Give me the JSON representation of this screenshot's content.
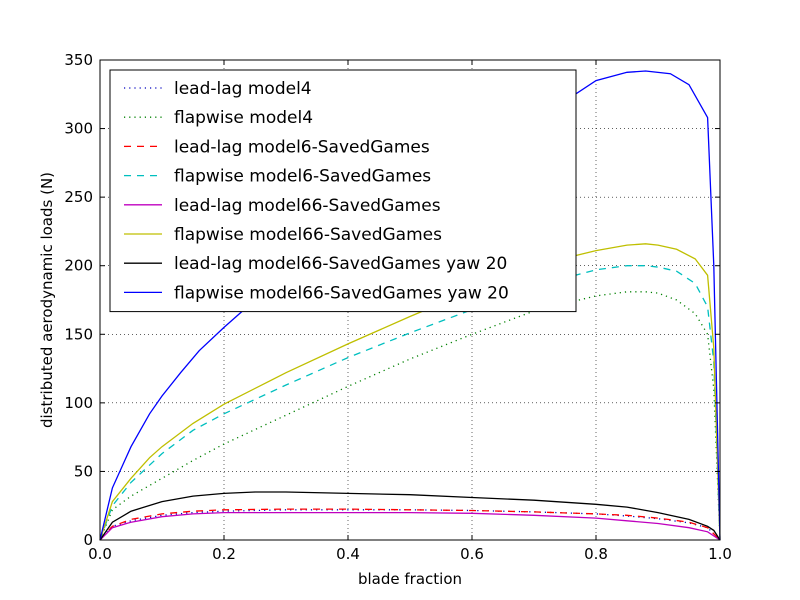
{
  "chart_data": {
    "type": "line",
    "xlabel": "blade fraction",
    "ylabel": "distributed aerodynamic loads (N)",
    "xlim": [
      0.0,
      1.0
    ],
    "ylim": [
      0,
      350
    ],
    "xticks": [
      "0.0",
      "0.2",
      "0.4",
      "0.6",
      "0.8",
      "1.0"
    ],
    "yticks": [
      "0",
      "50",
      "100",
      "150",
      "200",
      "250",
      "300",
      "350"
    ],
    "grid": true,
    "legend_position": "top-left",
    "series": [
      {
        "name": "lead-lag model4",
        "color": "#0000bf",
        "style": "dotted",
        "x": [
          0,
          0.02,
          0.05,
          0.1,
          0.15,
          0.2,
          0.3,
          0.4,
          0.5,
          0.6,
          0.7,
          0.8,
          0.85,
          0.9,
          0.95,
          0.98,
          1.0
        ],
        "y": [
          0,
          10,
          14,
          18,
          20,
          21,
          22,
          22,
          22,
          21.5,
          20.5,
          19,
          17.5,
          15.5,
          12.5,
          9,
          0
        ]
      },
      {
        "name": "flapwise model4",
        "color": "#008000",
        "style": "dotted",
        "x": [
          0,
          0.02,
          0.05,
          0.1,
          0.15,
          0.2,
          0.3,
          0.4,
          0.5,
          0.6,
          0.7,
          0.8,
          0.85,
          0.88,
          0.9,
          0.93,
          0.96,
          0.98,
          0.99,
          1.0
        ],
        "y": [
          0,
          22,
          32,
          45,
          58,
          70,
          91,
          112,
          132,
          150,
          167,
          178,
          181,
          181,
          180,
          175,
          165,
          150,
          110,
          0
        ]
      },
      {
        "name": "lead-lag model6-SavedGames",
        "color": "#ff0000",
        "style": "dashed",
        "x": [
          0,
          0.02,
          0.05,
          0.1,
          0.15,
          0.2,
          0.3,
          0.4,
          0.5,
          0.6,
          0.7,
          0.8,
          0.85,
          0.9,
          0.95,
          0.98,
          1.0
        ],
        "y": [
          0,
          10,
          15,
          19,
          21,
          22,
          22.5,
          22.5,
          22,
          21.5,
          20.5,
          19,
          18,
          16,
          13,
          9,
          0
        ]
      },
      {
        "name": "flapwise model6-SavedGames",
        "color": "#00bfbf",
        "style": "dashed",
        "x": [
          0,
          0.02,
          0.05,
          0.1,
          0.15,
          0.2,
          0.3,
          0.4,
          0.5,
          0.6,
          0.7,
          0.8,
          0.85,
          0.88,
          0.9,
          0.93,
          0.96,
          0.98,
          0.99,
          1.0
        ],
        "y": [
          0,
          25,
          42,
          63,
          80,
          92,
          113,
          133,
          151,
          168,
          185,
          197,
          200,
          200,
          199,
          196,
          187,
          170,
          130,
          0
        ]
      },
      {
        "name": "lead-lag model66-SavedGames",
        "color": "#bf00bf",
        "style": "solid",
        "x": [
          0,
          0.02,
          0.05,
          0.1,
          0.15,
          0.2,
          0.3,
          0.4,
          0.5,
          0.6,
          0.7,
          0.8,
          0.85,
          0.9,
          0.95,
          0.98,
          1.0
        ],
        "y": [
          0,
          9,
          13,
          17,
          19,
          20,
          20,
          20,
          20,
          19.5,
          18,
          16,
          14,
          12,
          9,
          6,
          0
        ]
      },
      {
        "name": "flapwise model66-SavedGames",
        "color": "#bfbf00",
        "style": "solid",
        "x": [
          0,
          0.02,
          0.05,
          0.08,
          0.1,
          0.15,
          0.2,
          0.3,
          0.4,
          0.5,
          0.6,
          0.7,
          0.8,
          0.85,
          0.88,
          0.9,
          0.93,
          0.96,
          0.98,
          0.99,
          1.0
        ],
        "y": [
          0,
          28,
          45,
          60,
          68,
          85,
          99,
          122,
          143,
          163,
          182,
          200,
          211,
          215,
          216,
          215,
          212,
          205,
          193,
          140,
          0
        ]
      },
      {
        "name": "lead-lag model66-SavedGames yaw 20",
        "color": "#000000",
        "style": "solid",
        "x": [
          0,
          0.02,
          0.05,
          0.1,
          0.15,
          0.2,
          0.25,
          0.3,
          0.4,
          0.5,
          0.6,
          0.7,
          0.8,
          0.85,
          0.9,
          0.95,
          0.98,
          0.99,
          1.0
        ],
        "y": [
          0,
          13,
          21,
          28,
          32,
          34,
          35,
          35,
          34,
          33,
          31,
          29,
          26,
          24,
          20,
          15,
          10,
          7,
          0
        ]
      },
      {
        "name": "flapwise model66-SavedGames yaw 20",
        "color": "#0000ff",
        "style": "solid",
        "x": [
          0,
          0.02,
          0.05,
          0.08,
          0.1,
          0.13,
          0.16,
          0.2,
          0.25,
          0.3,
          0.4,
          0.5,
          0.6,
          0.7,
          0.75,
          0.8,
          0.85,
          0.88,
          0.92,
          0.95,
          0.98,
          0.99,
          1.0
        ],
        "y": [
          0,
          38,
          68,
          92,
          105,
          122,
          138,
          155,
          175,
          195,
          228,
          258,
          285,
          310,
          320,
          335,
          341,
          342,
          340,
          332,
          308,
          200,
          0
        ]
      }
    ]
  }
}
